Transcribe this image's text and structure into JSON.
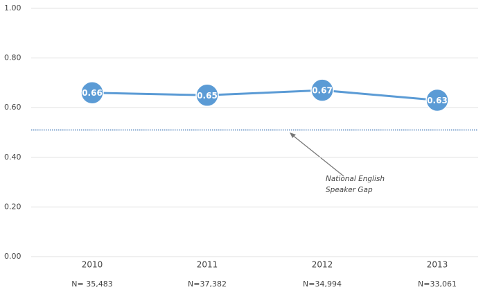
{
  "chart_data": {
    "type": "line",
    "categories": [
      "2010",
      "2011",
      "2012",
      "2013"
    ],
    "sample_sizes": [
      "N= 35,483",
      "N=37,382",
      "N=34,994",
      "N=33,061"
    ],
    "series": [
      {
        "color": "#5b9bd5",
        "values": [
          0.66,
          0.65,
          0.67,
          0.63
        ]
      }
    ],
    "ylim": [
      0,
      1
    ],
    "yticks": [
      {
        "value": 0,
        "label": "0.00"
      },
      {
        "value": 0.2,
        "label": "0.20"
      },
      {
        "value": 0.4,
        "label": "0.40"
      },
      {
        "value": 0.6,
        "label": "0.60"
      },
      {
        "value": 0.8,
        "label": "0.80"
      },
      {
        "value": 1,
        "label": "1.00"
      }
    ],
    "grid": true,
    "reference_line": {
      "value": 0.51,
      "color": "#4a7ebb"
    },
    "annotation": [
      "National English",
      "Speaker Gap"
    ]
  }
}
